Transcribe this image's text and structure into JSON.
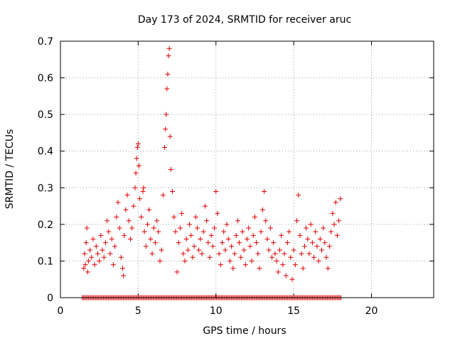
{
  "chart_data": {
    "type": "scatter",
    "title": "Day 173 of 2024, SRMTID for receiver aruc",
    "xlabel": "GPS time / hours",
    "ylabel": "SRMTID / TECUs",
    "xlim": [
      0,
      24
    ],
    "ylim": [
      0,
      0.7
    ],
    "xticks": [
      0,
      5,
      10,
      15,
      20
    ],
    "xtick_labels": [
      "0",
      "5",
      "10",
      "15",
      "20"
    ],
    "yticks": [
      0,
      0.1,
      0.2,
      0.3,
      0.4,
      0.5,
      0.6,
      0.7
    ],
    "ytick_labels": [
      "0",
      "0.1",
      "0.2",
      "0.3",
      "0.4",
      "0.5",
      "0.6",
      "0.7"
    ],
    "grid": true,
    "marker": "plus",
    "color": "#e00000",
    "series": [
      {
        "name": "SRMTID",
        "points": [
          [
            1.5,
            0.08
          ],
          [
            1.55,
            0.12
          ],
          [
            1.6,
            0.09
          ],
          [
            1.65,
            0.15
          ],
          [
            1.7,
            0.19
          ],
          [
            1.75,
            0.07
          ],
          [
            1.8,
            0.1
          ],
          [
            1.9,
            0.13
          ],
          [
            2.0,
            0.11
          ],
          [
            2.1,
            0.16
          ],
          [
            2.2,
            0.09
          ],
          [
            2.3,
            0.14
          ],
          [
            2.4,
            0.12
          ],
          [
            2.5,
            0.1
          ],
          [
            2.6,
            0.17
          ],
          [
            2.7,
            0.13
          ],
          [
            2.8,
            0.11
          ],
          [
            2.9,
            0.15
          ],
          [
            3.0,
            0.21
          ],
          [
            3.1,
            0.18
          ],
          [
            3.2,
            0.12
          ],
          [
            3.3,
            0.16
          ],
          [
            3.4,
            0.09
          ],
          [
            3.5,
            0.14
          ],
          [
            3.6,
            0.22
          ],
          [
            3.7,
            0.26
          ],
          [
            3.8,
            0.19
          ],
          [
            3.9,
            0.11
          ],
          [
            4.0,
            0.08
          ],
          [
            4.05,
            0.06
          ],
          [
            4.1,
            0.17
          ],
          [
            4.2,
            0.24
          ],
          [
            4.3,
            0.28
          ],
          [
            4.4,
            0.21
          ],
          [
            4.5,
            0.16
          ],
          [
            4.6,
            0.19
          ],
          [
            4.7,
            0.25
          ],
          [
            4.8,
            0.3
          ],
          [
            4.85,
            0.34
          ],
          [
            4.9,
            0.38
          ],
          [
            4.95,
            0.41
          ],
          [
            5.0,
            0.42
          ],
          [
            5.05,
            0.36
          ],
          [
            5.1,
            0.27
          ],
          [
            5.2,
            0.22
          ],
          [
            5.3,
            0.29
          ],
          [
            5.35,
            0.3
          ],
          [
            5.4,
            0.18
          ],
          [
            5.5,
            0.14
          ],
          [
            5.6,
            0.2
          ],
          [
            5.7,
            0.24
          ],
          [
            5.8,
            0.16
          ],
          [
            5.9,
            0.12
          ],
          [
            6.0,
            0.19
          ],
          [
            6.1,
            0.15
          ],
          [
            6.2,
            0.21
          ],
          [
            6.3,
            0.18
          ],
          [
            6.4,
            0.1
          ],
          [
            6.5,
            0.13
          ],
          [
            6.6,
            0.28
          ],
          [
            6.7,
            0.41
          ],
          [
            6.75,
            0.46
          ],
          [
            6.8,
            0.5
          ],
          [
            6.85,
            0.57
          ],
          [
            6.9,
            0.61
          ],
          [
            6.95,
            0.66
          ],
          [
            7.0,
            0.68
          ],
          [
            7.05,
            0.44
          ],
          [
            7.1,
            0.35
          ],
          [
            7.2,
            0.29
          ],
          [
            7.3,
            0.22
          ],
          [
            7.4,
            0.18
          ],
          [
            7.5,
            0.07
          ],
          [
            7.6,
            0.15
          ],
          [
            7.7,
            0.19
          ],
          [
            7.8,
            0.23
          ],
          [
            7.9,
            0.12
          ],
          [
            8.0,
            0.1
          ],
          [
            8.1,
            0.16
          ],
          [
            8.2,
            0.13
          ],
          [
            8.3,
            0.2
          ],
          [
            8.4,
            0.17
          ],
          [
            8.5,
            0.11
          ],
          [
            8.6,
            0.14
          ],
          [
            8.7,
            0.22
          ],
          [
            8.8,
            0.19
          ],
          [
            8.9,
            0.13
          ],
          [
            9.0,
            0.16
          ],
          [
            9.1,
            0.12
          ],
          [
            9.2,
            0.18
          ],
          [
            9.3,
            0.25
          ],
          [
            9.4,
            0.21
          ],
          [
            9.5,
            0.15
          ],
          [
            9.6,
            0.11
          ],
          [
            9.7,
            0.17
          ],
          [
            9.8,
            0.14
          ],
          [
            9.9,
            0.19
          ],
          [
            10.0,
            0.29
          ],
          [
            10.1,
            0.23
          ],
          [
            10.2,
            0.12
          ],
          [
            10.3,
            0.09
          ],
          [
            10.4,
            0.15
          ],
          [
            10.5,
            0.18
          ],
          [
            10.6,
            0.13
          ],
          [
            10.7,
            0.2
          ],
          [
            10.8,
            0.16
          ],
          [
            10.9,
            0.1
          ],
          [
            11.0,
            0.14
          ],
          [
            11.1,
            0.08
          ],
          [
            11.2,
            0.12
          ],
          [
            11.3,
            0.17
          ],
          [
            11.4,
            0.21
          ],
          [
            11.5,
            0.15
          ],
          [
            11.6,
            0.11
          ],
          [
            11.7,
            0.18
          ],
          [
            11.8,
            0.13
          ],
          [
            11.9,
            0.09
          ],
          [
            12.0,
            0.16
          ],
          [
            12.1,
            0.19
          ],
          [
            12.2,
            0.14
          ],
          [
            12.3,
            0.1
          ],
          [
            12.4,
            0.17
          ],
          [
            12.5,
            0.22
          ],
          [
            12.6,
            0.15
          ],
          [
            12.7,
            0.12
          ],
          [
            12.8,
            0.08
          ],
          [
            12.9,
            0.18
          ],
          [
            13.0,
            0.24
          ],
          [
            13.1,
            0.29
          ],
          [
            13.2,
            0.21
          ],
          [
            13.3,
            0.16
          ],
          [
            13.4,
            0.13
          ],
          [
            13.5,
            0.19
          ],
          [
            13.6,
            0.11
          ],
          [
            13.7,
            0.15
          ],
          [
            13.8,
            0.12
          ],
          [
            13.9,
            0.1
          ],
          [
            14.0,
            0.07
          ],
          [
            14.1,
            0.13
          ],
          [
            14.2,
            0.17
          ],
          [
            14.3,
            0.09
          ],
          [
            14.4,
            0.12
          ],
          [
            14.5,
            0.06
          ],
          [
            14.6,
            0.15
          ],
          [
            14.7,
            0.18
          ],
          [
            14.8,
            0.11
          ],
          [
            14.9,
            0.05
          ],
          [
            15.0,
            0.13
          ],
          [
            15.1,
            0.09
          ],
          [
            15.2,
            0.21
          ],
          [
            15.3,
            0.28
          ],
          [
            15.4,
            0.17
          ],
          [
            15.5,
            0.12
          ],
          [
            15.6,
            0.08
          ],
          [
            15.7,
            0.14
          ],
          [
            15.8,
            0.19
          ],
          [
            15.9,
            0.16
          ],
          [
            16.0,
            0.12
          ],
          [
            16.1,
            0.2
          ],
          [
            16.2,
            0.15
          ],
          [
            16.3,
            0.11
          ],
          [
            16.4,
            0.18
          ],
          [
            16.5,
            0.14
          ],
          [
            16.6,
            0.1
          ],
          [
            16.7,
            0.16
          ],
          [
            16.8,
            0.13
          ],
          [
            16.9,
            0.19
          ],
          [
            17.0,
            0.15
          ],
          [
            17.1,
            0.11
          ],
          [
            17.2,
            0.08
          ],
          [
            17.3,
            0.14
          ],
          [
            17.4,
            0.18
          ],
          [
            17.5,
            0.23
          ],
          [
            17.6,
            0.2
          ],
          [
            17.7,
            0.26
          ],
          [
            17.8,
            0.17
          ],
          [
            17.9,
            0.21
          ],
          [
            18.0,
            0.27
          ]
        ],
        "zero_range_hours": [
          1.4,
          18.1
        ]
      }
    ]
  }
}
